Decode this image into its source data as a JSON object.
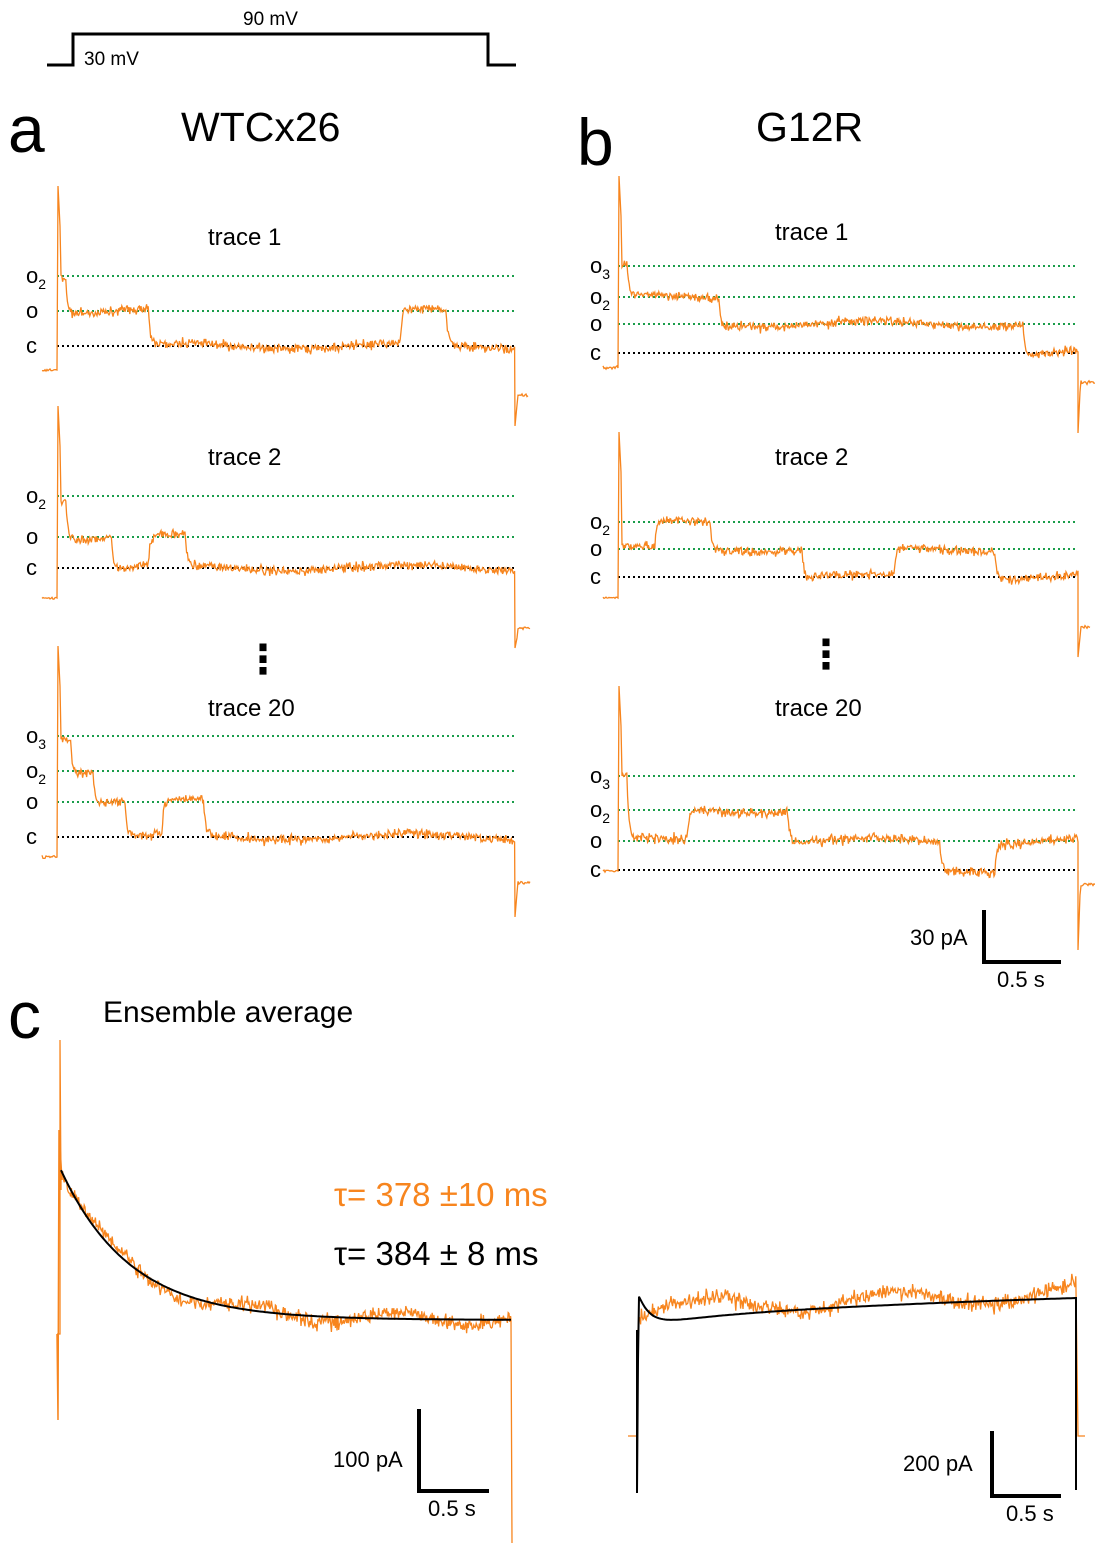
{
  "colors": {
    "trace": "#f7851e",
    "level": "#1a9d4a",
    "closed": "#000000",
    "fit": "#000000",
    "tau_wt": "#f7851e",
    "tau_g12r": "#000000"
  },
  "protocol": {
    "v1": "30 mV",
    "v2": "90 mV"
  },
  "panels": {
    "a": {
      "letter": "a",
      "title": "WTCx26"
    },
    "b": {
      "letter": "b",
      "title": "G12R"
    },
    "c": {
      "letter": "c",
      "title": "Ensemble average"
    }
  },
  "traces": {
    "a1": {
      "name": "trace 1",
      "levels": [
        "o2",
        "o",
        "c"
      ]
    },
    "a2": {
      "name": "trace 2",
      "levels": [
        "o2",
        "o",
        "c"
      ]
    },
    "a20": {
      "name": "trace 20",
      "levels": [
        "o3",
        "o2",
        "o",
        "c"
      ]
    },
    "b1": {
      "name": "trace 1",
      "levels": [
        "o3",
        "o2",
        "o",
        "c"
      ]
    },
    "b2": {
      "name": "trace 2",
      "levels": [
        "o2",
        "o",
        "c"
      ]
    },
    "b20": {
      "name": "trace 20",
      "levels": [
        "o3",
        "o2",
        "o",
        "c"
      ]
    }
  },
  "ellipsis": "⋮",
  "scalebars": {
    "single": {
      "current": "30 pA",
      "time": "0.5 s"
    },
    "ens_wt": {
      "current": "100 pA",
      "time": "0.5 s"
    },
    "ens_g12r": {
      "current": "200 pA",
      "time": "0.5 s"
    }
  },
  "tau": {
    "wt": "τ= 378 ±10 ms",
    "g12r": "τ= 384 ± 8 ms"
  },
  "chart_data": [
    {
      "type": "line",
      "title": "WTCx26",
      "series_description": "single-channel current traces (trace 1, trace 2, trace 20) with current levels c, o, o2, o3",
      "ylabel": "",
      "xlabel": ""
    },
    {
      "type": "line",
      "title": "G12R",
      "series_description": "single-channel current traces (trace 1, trace 2, trace 20) with current levels c, o, o2, o3",
      "ylabel": "",
      "xlabel": ""
    },
    {
      "type": "line",
      "title": "Ensemble average",
      "annotations": [
        "τ= 378 ±10 ms",
        "τ= 384 ± 8 ms"
      ],
      "xlabel": "",
      "ylabel": ""
    }
  ]
}
